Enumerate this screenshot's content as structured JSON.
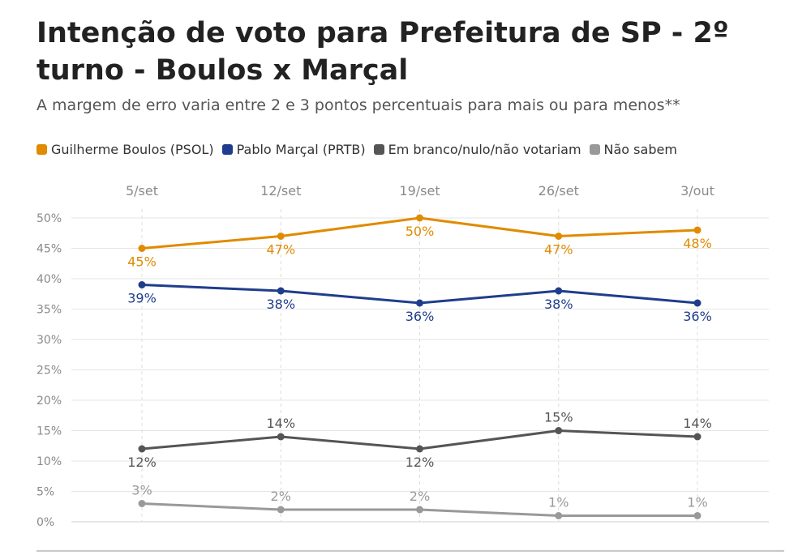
{
  "chart_data": {
    "type": "line",
    "title": "Intenção de voto para Prefeitura de SP - 2º turno - Boulos x Marçal",
    "subtitle": "A margem de erro varia entre 2 e 3 pontos percentuais para mais ou para menos**",
    "categories": [
      "5/set",
      "12/set",
      "19/set",
      "26/set",
      "3/out"
    ],
    "ylim": [
      0,
      50
    ],
    "yticks": [
      "0%",
      "5%",
      "10%",
      "15%",
      "20%",
      "25%",
      "30%",
      "35%",
      "40%",
      "45%",
      "50%"
    ],
    "grid": true,
    "legend_position": "top-left",
    "series": [
      {
        "name": "Guilherme Boulos (PSOL)",
        "color": "#e08b00",
        "values": [
          45,
          47,
          50,
          47,
          48
        ],
        "labels": [
          "45%",
          "47%",
          "50%",
          "47%",
          "48%"
        ]
      },
      {
        "name": "Pablo Marçal (PRTB)",
        "color": "#1f3d8c",
        "values": [
          39,
          38,
          36,
          38,
          36
        ],
        "labels": [
          "39%",
          "38%",
          "36%",
          "38%",
          "36%"
        ]
      },
      {
        "name": "Em branco/nulo/não votariam",
        "color": "#555555",
        "values": [
          12,
          14,
          12,
          15,
          14
        ],
        "labels": [
          "12%",
          "14%",
          "12%",
          "15%",
          "14%"
        ]
      },
      {
        "name": "Não sabem",
        "color": "#999999",
        "values": [
          3,
          2,
          2,
          1,
          1
        ],
        "labels": [
          "3%",
          "2%",
          "2%",
          "1%",
          "1%"
        ]
      }
    ]
  }
}
